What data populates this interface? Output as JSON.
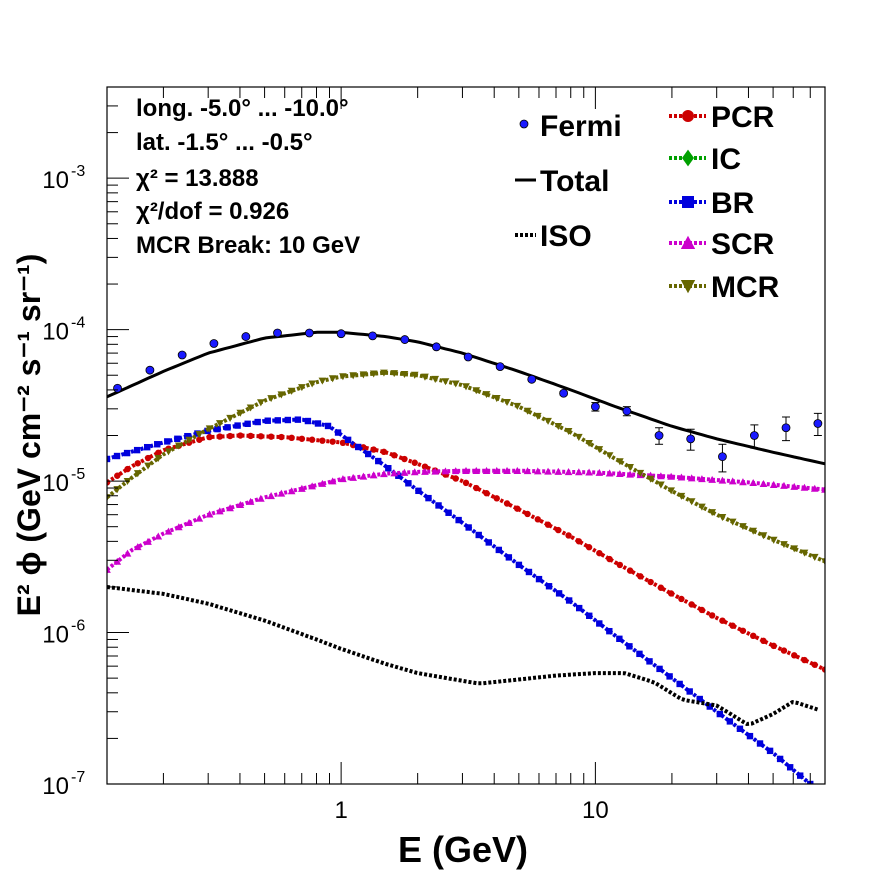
{
  "chart_data": {
    "type": "line",
    "xscale": "log",
    "yscale": "log",
    "xlim": [
      0.12,
      80
    ],
    "ylim": [
      1e-07,
      0.004
    ],
    "xlabel": "E (GeV)",
    "ylabel": "E² ϕ (GeV cm⁻² s⁻¹ sr⁻¹)",
    "x_ticks": [
      {
        "value": 1,
        "label": "1"
      },
      {
        "value": 10,
        "label": "10"
      }
    ],
    "y_ticks": [
      {
        "value": 1e-07,
        "base": "10",
        "exp": "-7"
      },
      {
        "value": 1e-06,
        "base": "10",
        "exp": "-6"
      },
      {
        "value": 1e-05,
        "base": "10",
        "exp": "-5"
      },
      {
        "value": 0.0001,
        "base": "10",
        "exp": "-4"
      },
      {
        "value": 0.001,
        "base": "10",
        "exp": "-3"
      }
    ],
    "info_lines": [
      "long. -5.0° ... -10.0°",
      "lat. -1.5° ... -0.5°",
      "χ² = 13.888",
      "χ²/dof = 0.926",
      "MCR Break: 10 GeV"
    ],
    "legend": {
      "left": [
        {
          "label": "Fermi",
          "style": "points"
        },
        {
          "label": "Total",
          "style": "line"
        },
        {
          "label": "ISO",
          "style": "dotted"
        }
      ],
      "right": [
        {
          "label": "PCR",
          "marker": "circle",
          "color": "#cc0000"
        },
        {
          "label": "IC",
          "marker": "diamond",
          "color": "#00a000"
        },
        {
          "label": "BR",
          "marker": "square",
          "color": "#0000dd"
        },
        {
          "label": "SCR",
          "marker": "triangle-up",
          "color": "#cc00cc"
        },
        {
          "label": "MCR",
          "marker": "triangle-down",
          "color": "#666600"
        }
      ]
    },
    "fermi": {
      "x": [
        0.132,
        0.177,
        0.237,
        0.316,
        0.422,
        0.562,
        0.75,
        1.0,
        1.33,
        1.78,
        2.37,
        3.16,
        4.22,
        5.62,
        7.5,
        10.0,
        13.3,
        17.8,
        23.7,
        31.6,
        42.2,
        56.2,
        75.0
      ],
      "y": [
        4.1e-05,
        5.4e-05,
        6.8e-05,
        8.1e-05,
        9e-05,
        9.5e-05,
        9.5e-05,
        9.4e-05,
        9.1e-05,
        8.6e-05,
        7.7e-05,
        6.6e-05,
        5.7e-05,
        4.7e-05,
        3.8e-05,
        3.1e-05,
        2.9e-05,
        2e-05,
        1.9e-05,
        1.45e-05,
        2e-05,
        2.25e-05,
        2.4e-05
      ],
      "yerr": [
        1e-06,
        1e-06,
        1e-06,
        1e-06,
        1e-06,
        1e-06,
        1e-06,
        1e-06,
        1e-06,
        1e-06,
        1e-06,
        1e-06,
        1e-06,
        1e-06,
        1e-06,
        2e-06,
        2e-06,
        2.5e-06,
        3e-06,
        3e-06,
        3.5e-06,
        4e-06,
        4e-06
      ]
    },
    "series": [
      {
        "name": "Total",
        "style": "solid",
        "color": "#000000",
        "x": [
          0.12,
          0.2,
          0.3,
          0.5,
          0.8,
          1.0,
          1.5,
          2.0,
          3.0,
          5.0,
          8.0,
          12.0,
          20.0,
          30.0,
          50.0,
          80.0
        ],
        "y": [
          3.6e-05,
          5.3e-05,
          7e-05,
          8.8e-05,
          9.6e-05,
          9.6e-05,
          9e-05,
          8.3e-05,
          7e-05,
          5.3e-05,
          4e-05,
          3.1e-05,
          2.3e-05,
          1.9e-05,
          1.55e-05,
          1.3e-05
        ]
      },
      {
        "name": "PCR",
        "style": "dotted",
        "color": "#cc0000",
        "marker": "circle",
        "x": [
          0.12,
          0.15,
          0.2,
          0.3,
          0.4,
          0.6,
          1.0,
          1.5,
          2.0,
          3.0,
          5.0,
          8.0,
          12.0,
          20.0,
          30.0,
          50.0,
          80.0
        ],
        "y": [
          9.8e-06,
          1.25e-05,
          1.6e-05,
          1.95e-05,
          2e-05,
          1.95e-05,
          1.8e-05,
          1.55e-05,
          1.3e-05,
          1e-05,
          6.5e-06,
          4.3e-06,
          2.9e-06,
          1.8e-06,
          1.25e-06,
          8.2e-07,
          5.7e-07
        ]
      },
      {
        "name": "BR",
        "style": "dotted",
        "color": "#0000dd",
        "marker": "square",
        "x": [
          0.12,
          0.2,
          0.3,
          0.5,
          0.7,
          0.9,
          1.1,
          1.5,
          2.0,
          3.0,
          5.0,
          8.0,
          12.0,
          20.0,
          30.0,
          50.0,
          70.0
        ],
        "y": [
          1.4e-05,
          1.8e-05,
          2.15e-05,
          2.5e-05,
          2.55e-05,
          2.3e-05,
          1.8e-05,
          1.25e-05,
          8.7e-06,
          5.3e-06,
          2.8e-06,
          1.6e-06,
          9.5e-07,
          5e-07,
          3e-07,
          1.6e-07,
          1e-07
        ]
      },
      {
        "name": "SCR",
        "style": "dotted",
        "color": "#cc00cc",
        "marker": "triangle-up",
        "x": [
          0.12,
          0.15,
          0.2,
          0.3,
          0.5,
          0.8,
          1.0,
          1.5,
          2.0,
          3.0,
          5.0,
          10.0,
          20.0,
          40.0,
          80.0
        ],
        "y": [
          2.6e-06,
          3.5e-06,
          4.5e-06,
          6e-06,
          7.8e-06,
          9.4e-06,
          1.03e-05,
          1.12e-05,
          1.15e-05,
          1.17e-05,
          1.17e-05,
          1.14e-05,
          1.07e-05,
          9.8e-06,
          8.8e-06
        ]
      },
      {
        "name": "MCR",
        "style": "dotted",
        "color": "#666600",
        "marker": "triangle-down",
        "x": [
          0.12,
          0.15,
          0.2,
          0.3,
          0.5,
          0.8,
          1.0,
          1.5,
          2.0,
          3.0,
          5.0,
          8.0,
          12.0,
          20.0,
          30.0,
          50.0,
          80.0
        ],
        "y": [
          7.8e-06,
          1.05e-05,
          1.5e-05,
          2.2e-05,
          3.4e-05,
          4.5e-05,
          4.9e-05,
          5.2e-05,
          5e-05,
          4.3e-05,
          3.1e-05,
          2.1e-05,
          1.4e-05,
          8.6e-06,
          6e-06,
          4.1e-06,
          2.95e-06
        ]
      },
      {
        "name": "ISO",
        "style": "dotted",
        "color": "#000000",
        "marker": "none",
        "x": [
          0.12,
          0.2,
          0.3,
          0.5,
          0.8,
          1.0,
          1.5,
          2.0,
          3.0,
          3.5,
          5.0,
          7.0,
          10.0,
          13.0,
          17.0,
          22.0,
          30.0,
          40.0,
          50.0,
          60.0,
          75.0
        ],
        "y": [
          2e-06,
          1.8e-06,
          1.55e-06,
          1.2e-06,
          9e-07,
          7.8e-07,
          6.2e-07,
          5.4e-07,
          4.8e-07,
          4.6e-07,
          4.9e-07,
          5.2e-07,
          5.4e-07,
          5.4e-07,
          4.7e-07,
          3.6e-07,
          3.3e-07,
          2.45e-07,
          2.9e-07,
          3.5e-07,
          3.1e-07
        ]
      }
    ]
  }
}
